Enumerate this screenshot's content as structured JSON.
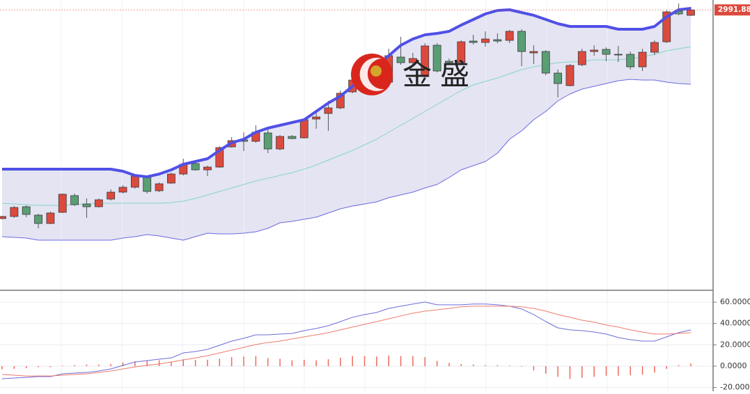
{
  "chart_data": [
    {
      "type": "candlestick",
      "open": [
        2842,
        2843.5,
        2850.5,
        2844.5,
        2838.5,
        2846.5,
        2858.5,
        2852.5,
        2850.5,
        2856,
        2861,
        2864.5,
        2871.5,
        2862,
        2867.5,
        2874,
        2881.5,
        2877,
        2879,
        2893.5,
        2898.5,
        2897.5,
        2903.5,
        2892,
        2901,
        2900,
        2913.5,
        2917.5,
        2921.5,
        2933,
        2940,
        2944,
        2940,
        2958,
        2954,
        2944,
        2966.5,
        2955,
        2954,
        2969.5,
        2968.5,
        2970.5,
        2970,
        2976.5,
        2961,
        2962,
        2946.5,
        2937.5,
        2952.5,
        2962,
        2963.5,
        2960,
        2960,
        2951,
        2961.5,
        2969,
        2991,
        2988
      ],
      "high": [
        2844,
        2851,
        2851.5,
        2845.5,
        2847,
        2860,
        2860,
        2856.5,
        2856.5,
        2863,
        2866,
        2873,
        2872.5,
        2868,
        2875,
        2885,
        2883,
        2880,
        2894,
        2900.5,
        2904,
        2909,
        2906,
        2902,
        2902,
        2914,
        2920,
        2926.5,
        2934,
        2943,
        2951.5,
        2959,
        2964,
        2972.5,
        2961,
        2968,
        2968,
        2957,
        2970,
        2974,
        2976.5,
        2975,
        2977.5,
        2978,
        2966.5,
        2963,
        2949,
        2953,
        2964,
        2966.5,
        2965,
        2966,
        2962,
        2964,
        2970,
        2991.5,
        2996.5,
        2994
      ],
      "low": [
        2841.5,
        2842.5,
        2843,
        2835,
        2838,
        2846,
        2851,
        2842.5,
        2850,
        2855,
        2860,
        2863.5,
        2860,
        2861,
        2867,
        2873,
        2876.5,
        2872.5,
        2878.5,
        2893,
        2890.5,
        2896.5,
        2889,
        2891,
        2899,
        2899.5,
        2906.5,
        2905,
        2920.5,
        2932,
        2931.5,
        2940,
        2939,
        2952.5,
        2951.5,
        2943,
        2947,
        2953,
        2953,
        2967,
        2965.5,
        2968,
        2968,
        2951.5,
        2953,
        2945,
        2929,
        2937,
        2951.5,
        2959,
        2955,
        2954.5,
        2949,
        2948,
        2959.5,
        2968,
        2988,
        2987.5
      ],
      "close": [
        2843.5,
        2850,
        2845,
        2838.5,
        2846,
        2859.5,
        2852,
        2850.5,
        2855.5,
        2861,
        2864.5,
        2872.5,
        2861.5,
        2867,
        2874,
        2881,
        2877,
        2879,
        2893,
        2898,
        2897.5,
        2904,
        2892,
        2901,
        2899.5,
        2913,
        2915,
        2921.5,
        2932,
        2941.5,
        2944,
        2951.5,
        2959,
        2954,
        2957,
        2966,
        2948,
        2954,
        2969,
        2968.5,
        2971,
        2969.5,
        2976.5,
        2962,
        2962,
        2946.5,
        2939,
        2952,
        2962,
        2963,
        2960,
        2959.5,
        2951,
        2961.5,
        2968.5,
        2990.5,
        2989,
        2991.88
      ],
      "up_color": "#dc4a3d",
      "down_color": "#5a9e74",
      "series": [
        {
          "color": "#5050e6",
          "values": [
            2877.5,
            2877.5,
            2877.5,
            2877.5,
            2877.5,
            2877.5,
            2877.5,
            2877.5,
            2877.5,
            2877.5,
            2876,
            2873,
            2872,
            2874,
            2877,
            2881,
            2883,
            2885,
            2891,
            2896.5,
            2899,
            2904,
            2907,
            2909,
            2911,
            2913,
            2919,
            2925,
            2930,
            2937,
            2944,
            2951.5,
            2959,
            2966.5,
            2971,
            2974,
            2975,
            2976.5,
            2981,
            2985,
            2989,
            2991.5,
            2992,
            2990,
            2988,
            2985,
            2982,
            2980,
            2980,
            2980,
            2980,
            2978,
            2978,
            2978,
            2980,
            2987,
            2992,
            2993
          ]
        },
        {
          "color": "#86d6c2",
          "values": [
            2853,
            2852.5,
            2852,
            2851.5,
            2851.5,
            2851.5,
            2852,
            2852.5,
            2853,
            2853,
            2853,
            2853,
            2853,
            2853,
            2853.5,
            2854.5,
            2856.5,
            2859,
            2861.5,
            2864,
            2866.5,
            2869,
            2871,
            2873,
            2875,
            2877.5,
            2880.5,
            2884,
            2887.5,
            2891,
            2895,
            2899,
            2904,
            2909,
            2914,
            2919,
            2924,
            2929,
            2934,
            2938,
            2940.5,
            2943,
            2946,
            2949,
            2951,
            2952.5,
            2954,
            2954.5,
            2955,
            2956,
            2956,
            2956,
            2957,
            2958,
            2960,
            2962.5,
            2964,
            2965.5
          ]
        },
        {
          "color": "#6a6ae0",
          "values": [
            2829,
            2828.5,
            2828,
            2826.5,
            2826.5,
            2826.5,
            2826.5,
            2826.5,
            2826.5,
            2826.5,
            2828,
            2829,
            2830.5,
            2829.5,
            2828,
            2826.5,
            2829,
            2831.5,
            2831,
            2831,
            2831.5,
            2832.5,
            2835,
            2839,
            2840,
            2841.5,
            2843,
            2846,
            2849,
            2851,
            2852.5,
            2854,
            2857,
            2859,
            2861,
            2864,
            2866.5,
            2871.5,
            2877,
            2880,
            2883,
            2889,
            2899,
            2905,
            2913,
            2919,
            2926.5,
            2931.5,
            2935,
            2937,
            2939,
            2941,
            2942,
            2941.5,
            2941.5,
            2940,
            2939,
            2938.5
          ]
        }
      ],
      "band_fill": "#e4e4f3",
      "ylim": [
        2791.5,
        2999
      ],
      "watermark": "金盛"
    },
    {
      "type": "macd",
      "series": [
        {
          "color": "#6c6cd8",
          "values": [
            -11.8,
            -11.1,
            -10.5,
            -9.8,
            -9.8,
            -7.2,
            -6.5,
            -5.9,
            -4.6,
            -2.6,
            0.7,
            3.9,
            5.2,
            6.5,
            7.8,
            12.4,
            13.7,
            15.7,
            19.6,
            23.5,
            26.1,
            29.4,
            29.4,
            30.1,
            30.7,
            33.3,
            35.3,
            37.9,
            41.8,
            45.8,
            48.4,
            50.3,
            54.2,
            56.2,
            58.2,
            60.1,
            57.5,
            57.5,
            57.5,
            58.2,
            58.2,
            57.5,
            56.2,
            53.6,
            48.4,
            41.8,
            35.9,
            34.0,
            33.3,
            32.0,
            30.1,
            26.8,
            24.8,
            23.5,
            23.5,
            27.5,
            31.4,
            34.0
          ]
        },
        {
          "color": "#ee7b6c",
          "values": [
            -7.8,
            -8.5,
            -9.2,
            -9.2,
            -9.2,
            -8.5,
            -7.8,
            -7.2,
            -5.9,
            -4.6,
            -2.6,
            -0.7,
            0.7,
            2.0,
            3.9,
            5.9,
            7.8,
            9.8,
            12.4,
            15.0,
            17.6,
            20.3,
            22.2,
            23.5,
            25.5,
            27.5,
            29.4,
            31.4,
            34.0,
            36.6,
            39.2,
            41.8,
            44.4,
            47.1,
            49.7,
            51.6,
            52.9,
            54.2,
            55.6,
            56.2,
            56.2,
            56.2,
            56.2,
            55.6,
            54.2,
            51.6,
            48.4,
            45.8,
            43.1,
            41.2,
            38.6,
            36.6,
            34.0,
            32.0,
            30.1,
            30.1,
            30.7,
            31.4
          ]
        }
      ],
      "histogram": {
        "color": "#ee6a5c",
        "values": [
          -3,
          -2.5,
          -2,
          -1,
          -1,
          0.5,
          1,
          1.5,
          1.5,
          2,
          3.5,
          4.5,
          5,
          5.5,
          4,
          6.5,
          6,
          6,
          7,
          8.5,
          9,
          9.5,
          7.5,
          7,
          5.5,
          6,
          5.5,
          6.5,
          8,
          9.5,
          9.5,
          9,
          10,
          9.5,
          9.5,
          8.5,
          5,
          3,
          2,
          1.5,
          1,
          1,
          0.5,
          -0.5,
          -4,
          -7,
          -10,
          -12,
          -11,
          -10,
          -9,
          -9,
          -8.5,
          -8,
          -6,
          -2.5,
          1,
          2.5
        ]
      },
      "ylim": [
        -23.5,
        70.5
      ],
      "yticks": [
        {
          "value": 60,
          "label": "60.0000"
        },
        {
          "value": 40,
          "label": "40.0000"
        },
        {
          "value": 20,
          "label": "20.0000"
        },
        {
          "value": 0,
          "label": "0.0000"
        },
        {
          "value": -20,
          "label": "-20.0000"
        }
      ],
      "grid": true
    }
  ]
}
